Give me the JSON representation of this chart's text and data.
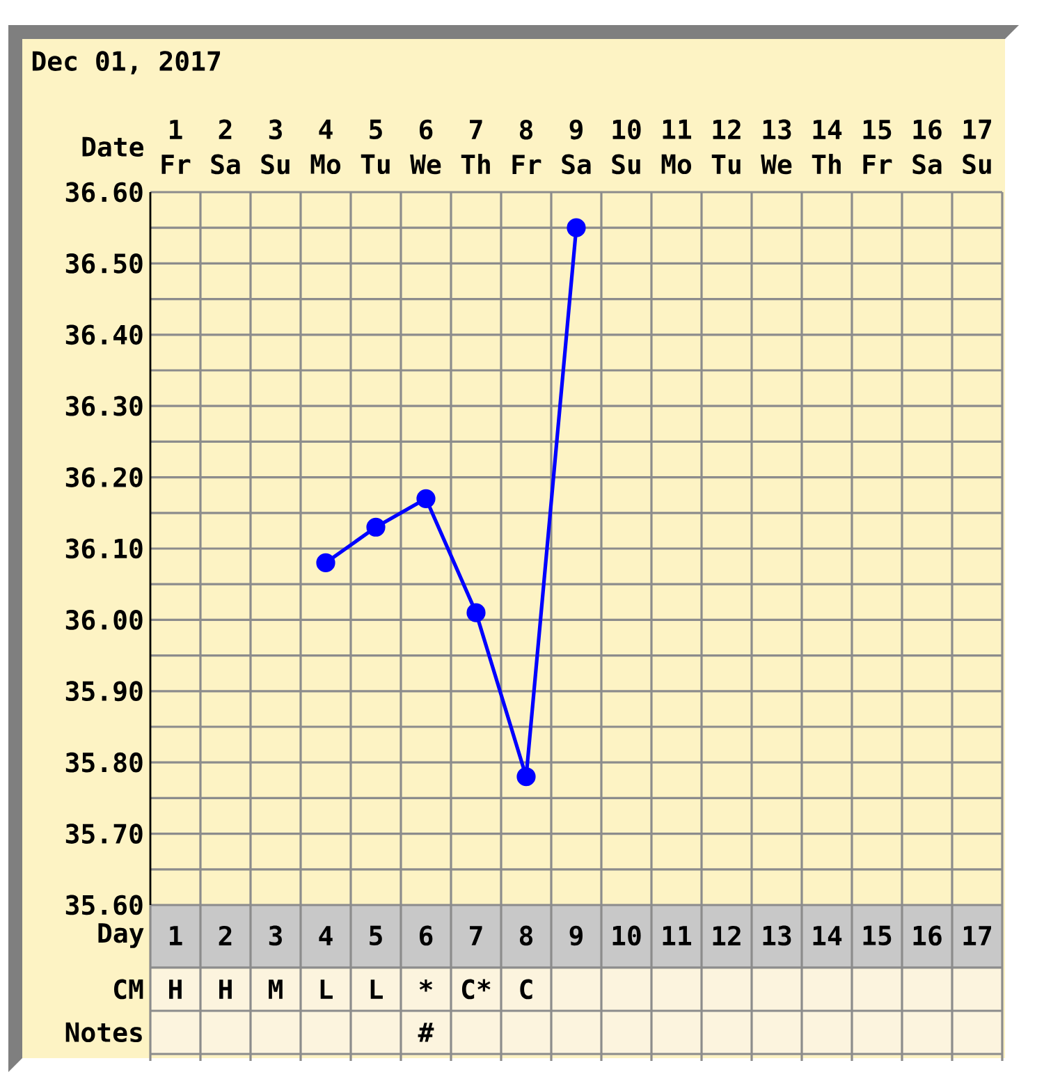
{
  "chart_data": [
    {
      "type": "line",
      "title": "Dec 01, 2017",
      "xlabel": "Day",
      "x2label": "Date",
      "xlim": [
        0.5,
        17.5
      ],
      "xticks": [
        1,
        2,
        3,
        4,
        5,
        6,
        7,
        8,
        9,
        10,
        11,
        12,
        13,
        14,
        15,
        16,
        17
      ],
      "x2lim": [
        0.5,
        17.5
      ],
      "x2ticks": [
        {
          "value": 1,
          "label": "1 Fr"
        },
        {
          "value": 2,
          "label": "2 Sa"
        },
        {
          "value": 3,
          "label": "3 Su"
        },
        {
          "value": 4,
          "label": "4 Mo"
        },
        {
          "value": 5,
          "label": "5 Tu"
        },
        {
          "value": 6,
          "label": "6 We"
        },
        {
          "value": 7,
          "label": "7 Th"
        },
        {
          "value": 8,
          "label": "8 Fr"
        },
        {
          "value": 9,
          "label": "9 Sa"
        },
        {
          "value": 10,
          "label": "10 Su"
        },
        {
          "value": 11,
          "label": "11 Mo"
        },
        {
          "value": 12,
          "label": "12 Tu"
        },
        {
          "value": 13,
          "label": "13 We"
        },
        {
          "value": 14,
          "label": "14 Th"
        },
        {
          "value": 15,
          "label": "15 Fr"
        },
        {
          "value": 16,
          "label": "16 Sa"
        },
        {
          "value": 17,
          "label": "17 Su"
        }
      ],
      "ylim": [
        35.6,
        36.6
      ],
      "yticks": [
        {
          "value": 35.6,
          "label": "35.60"
        },
        {
          "value": 35.7,
          "label": "35.70"
        },
        {
          "value": 35.8,
          "label": "35.80"
        },
        {
          "value": 35.9,
          "label": "35.90"
        },
        {
          "value": 36.0,
          "label": "36.00"
        },
        {
          "value": 36.1,
          "label": "36.10"
        },
        {
          "value": 36.2,
          "label": "36.20"
        },
        {
          "value": 36.3,
          "label": "36.30"
        },
        {
          "value": 36.4,
          "label": "36.40"
        },
        {
          "value": 36.5,
          "label": "36.50"
        },
        {
          "value": 36.6,
          "label": "36.60"
        }
      ],
      "series": [
        {
          "color": "#0000ff",
          "x": [
            4,
            5,
            6,
            7,
            8,
            9
          ],
          "values": [
            36.08,
            36.13,
            36.17,
            36.01,
            35.78,
            36.55
          ]
        }
      ],
      "marker": "circle",
      "grid": true
    },
    {
      "type": "heatmap",
      "categories": [
        null,
        null,
        null,
        null,
        null,
        null,
        null,
        null,
        null,
        null,
        null,
        null,
        null,
        null,
        null,
        null,
        null
      ],
      "y_categories": [
        "CM",
        "Notes"
      ],
      "cells": [
        [
          null,
          null,
          null,
          null,
          null,
          null,
          null,
          null,
          null,
          null,
          null,
          null,
          null,
          null,
          null,
          null,
          null
        ],
        [
          null,
          null,
          null,
          null,
          null,
          null,
          null,
          null,
          null,
          null,
          null,
          null,
          null,
          null,
          null,
          null,
          null
        ]
      ],
      "cell_labels": [
        [
          "H",
          "H",
          "M",
          "L",
          "L",
          "*",
          "C*",
          "C",
          null,
          null,
          null,
          null,
          null,
          null,
          null,
          null,
          null
        ],
        [
          null,
          null,
          null,
          null,
          null,
          "#",
          null,
          null,
          null,
          null,
          null,
          null,
          null,
          null,
          null,
          null,
          null
        ]
      ]
    }
  ]
}
